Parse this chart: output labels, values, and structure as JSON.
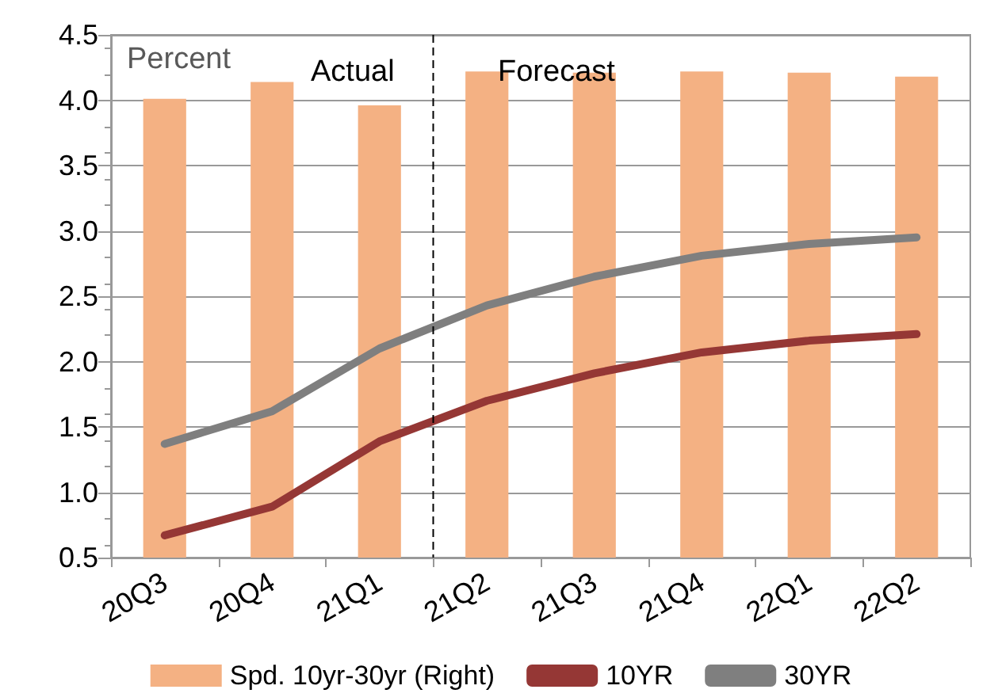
{
  "chart_data": {
    "type": "bar",
    "categories": [
      "20Q3",
      "20Q4",
      "21Q1",
      "21Q2",
      "21Q3",
      "21Q4",
      "22Q1",
      "22Q2"
    ],
    "series": [
      {
        "name": "Spd. 10yr-30yr (Right)",
        "color": "#f4b183",
        "values": [
          4.01,
          4.14,
          3.96,
          4.22,
          4.21,
          4.22,
          4.21,
          4.18
        ]
      },
      {
        "name": "10YR",
        "type": "line",
        "color": "#953735",
        "values": [
          0.67,
          0.89,
          1.39,
          1.7,
          1.91,
          2.07,
          2.16,
          2.21
        ]
      },
      {
        "name": "30YR",
        "type": "line",
        "color": "#7f7f7f",
        "values": [
          1.37,
          1.62,
          2.1,
          2.43,
          2.65,
          2.81,
          2.9,
          2.95
        ]
      }
    ],
    "ylim": [
      0.5,
      4.5
    ],
    "yticks": [
      0.5,
      {
        "value": 1,
        "label": "1.0"
      },
      1.5,
      {
        "value": 2,
        "label": "2.0"
      },
      2.5,
      {
        "value": 3,
        "label": "3.0"
      },
      3.5,
      {
        "value": 4,
        "label": "4.0"
      },
      4.5
    ],
    "ref_lines": [
      {
        "axis": "x",
        "value": "21Q2",
        "label": null,
        "color": "#000000",
        "line_style": "dashed"
      }
    ],
    "annotations": [
      "Percent",
      "Actual",
      "Forecast"
    ],
    "grid": "y",
    "legend": "bottom",
    "marker": "none",
    "line_style": "solid"
  }
}
